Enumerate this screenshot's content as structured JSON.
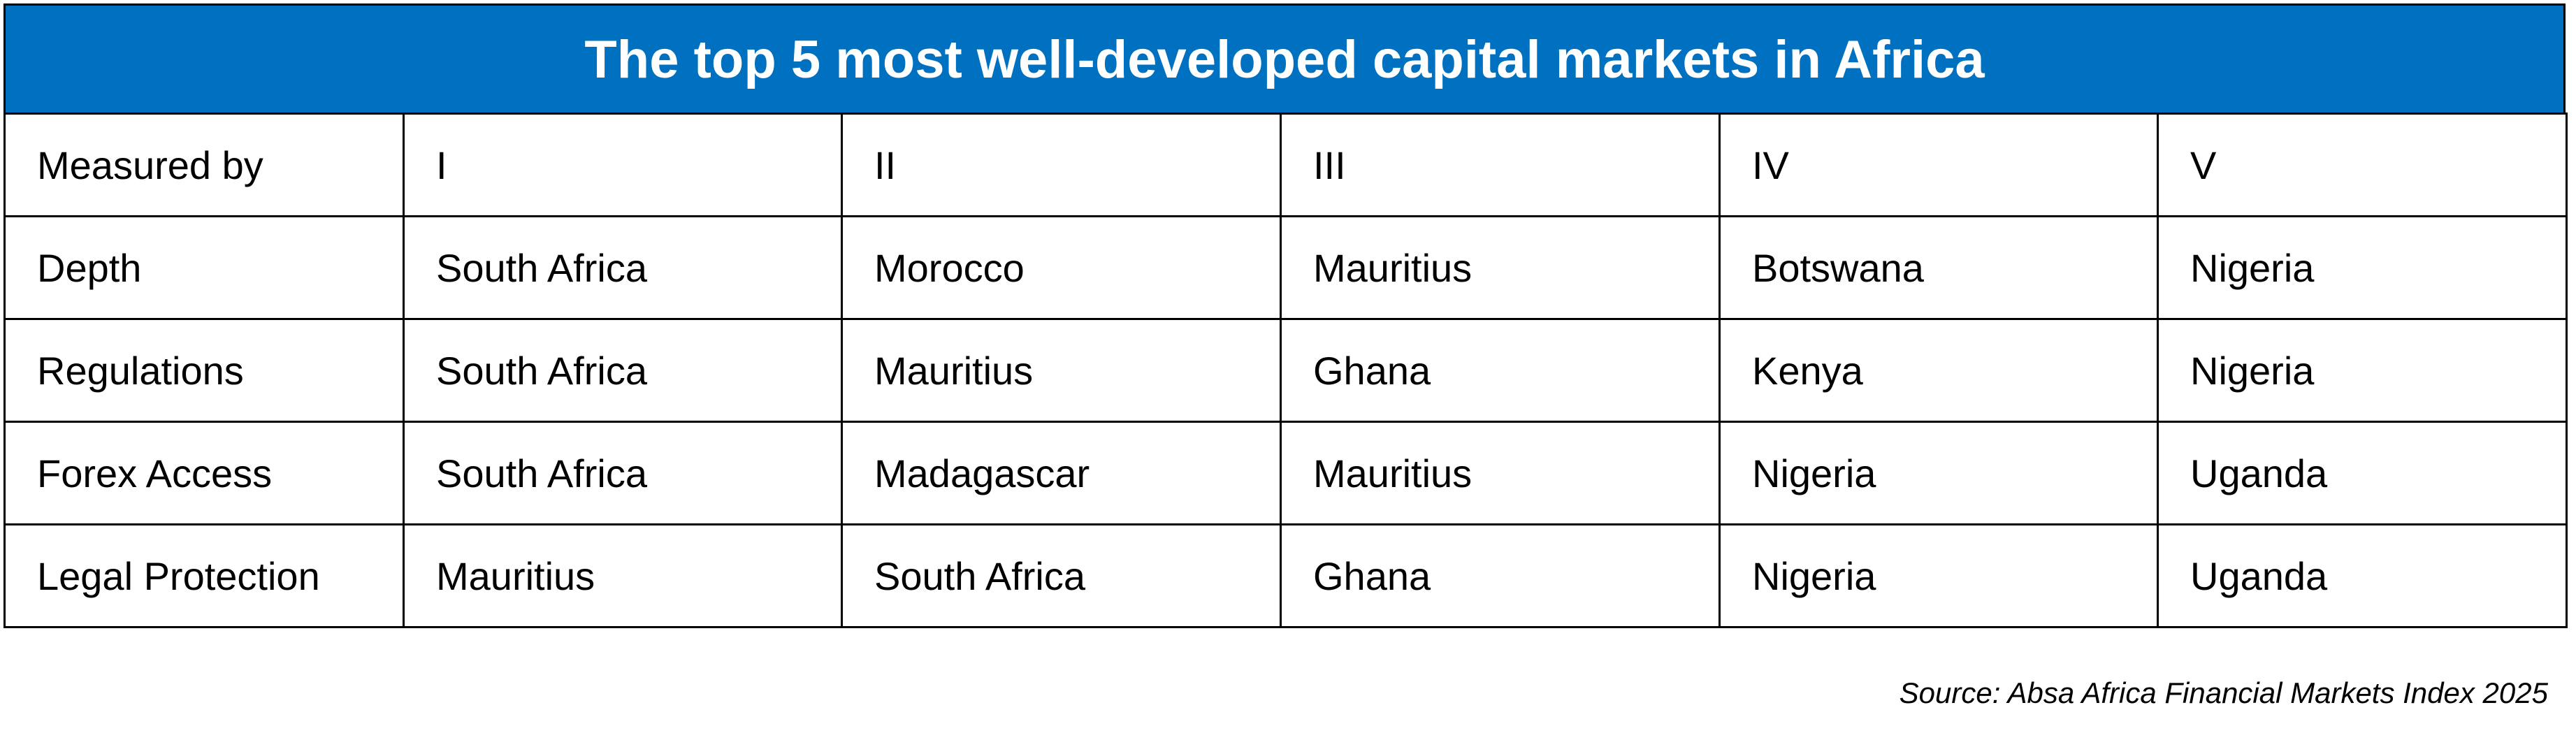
{
  "title": "The top 5 most well-developed capital markets in Africa",
  "table": {
    "header": [
      "Measured by",
      "I",
      "II",
      "III",
      "IV",
      "V"
    ],
    "rows": [
      [
        "Depth",
        "South Africa",
        "Morocco",
        "Mauritius",
        "Botswana",
        "Nigeria"
      ],
      [
        "Regulations",
        "South Africa",
        "Mauritius",
        "Ghana",
        "Kenya",
        "Nigeria"
      ],
      [
        "Forex Access",
        "South Africa",
        "Madagascar",
        "Mauritius",
        "Nigeria",
        "Uganda"
      ],
      [
        "Legal Protection",
        "Mauritius",
        "South Africa",
        "Ghana",
        "Nigeria",
        "Uganda"
      ]
    ]
  },
  "source": "Source: Absa Africa Financial Markets Index 2025"
}
